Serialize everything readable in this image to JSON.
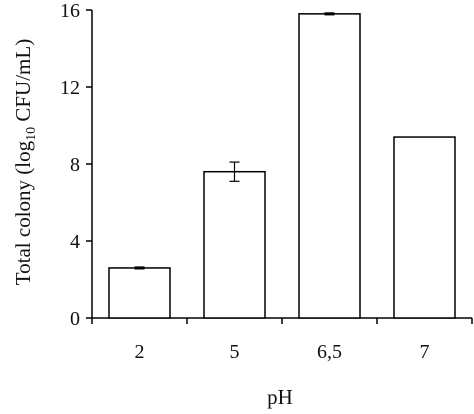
{
  "chart_data": {
    "type": "bar",
    "categories": [
      "2",
      "5",
      "6,5",
      "7"
    ],
    "values": [
      2.6,
      7.6,
      15.8,
      9.4
    ],
    "errors": [
      0.05,
      0.5,
      0.05,
      0.0
    ],
    "xlabel": "pH",
    "ylabel_main": "Total colony (log",
    "ylabel_sub": "10",
    "ylabel_tail": " CFU/mL)",
    "ylim": [
      0,
      16
    ],
    "yticks": [
      "0",
      "4",
      "8",
      "12",
      "16"
    ],
    "grid": false,
    "legend": "none",
    "bar_fill": "#ffffff",
    "bar_stroke": "#000000"
  }
}
